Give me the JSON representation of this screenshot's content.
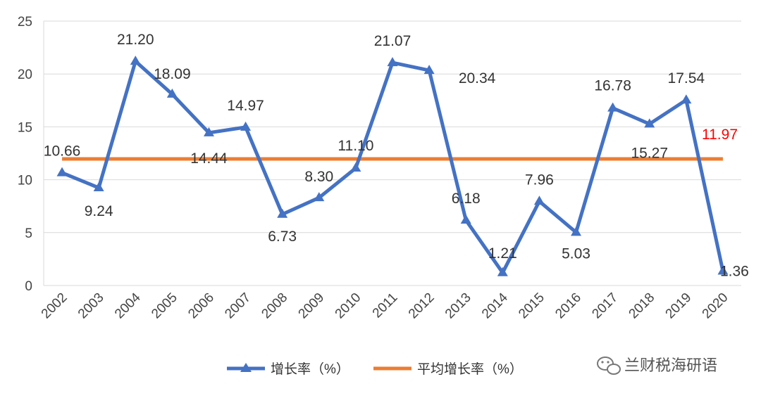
{
  "chart_data": {
    "type": "line",
    "categories": [
      "2002",
      "2003",
      "2004",
      "2005",
      "2006",
      "2007",
      "2008",
      "2009",
      "2010",
      "2011",
      "2012",
      "2013",
      "2014",
      "2015",
      "2016",
      "2017",
      "2018",
      "2019",
      "2020"
    ],
    "series": [
      {
        "name": "增长率（%）",
        "color": "#4472C4",
        "marker": "triangle",
        "values": [
          10.66,
          9.24,
          21.2,
          18.09,
          14.44,
          14.97,
          6.73,
          8.3,
          11.1,
          21.07,
          20.34,
          6.18,
          1.21,
          7.96,
          5.03,
          16.78,
          15.27,
          17.54,
          1.36
        ],
        "labels": [
          "10.66",
          "9.24",
          "21.20",
          "18.09",
          "14.44",
          "14.97",
          "6.73",
          "8.30",
          "11.10",
          "21.07",
          "20.34",
          "6.18",
          "1.21",
          "7.96",
          "5.03",
          "16.78",
          "15.27",
          "17.54",
          "1.36"
        ]
      },
      {
        "name": "平均增长率（%）",
        "color": "#ED7D31",
        "value": 11.97,
        "label": "11.97",
        "label_color": "#ff0000"
      }
    ],
    "ylim": [
      0,
      25
    ],
    "yticks": [
      "0",
      "5",
      "10",
      "15",
      "20",
      "25"
    ],
    "ytick_values": [
      0,
      5,
      10,
      15,
      20,
      25
    ],
    "grid": true,
    "legend_position": "bottom-center"
  },
  "watermark": {
    "text": "兰财税海研语",
    "icon": "wechat-icon"
  }
}
